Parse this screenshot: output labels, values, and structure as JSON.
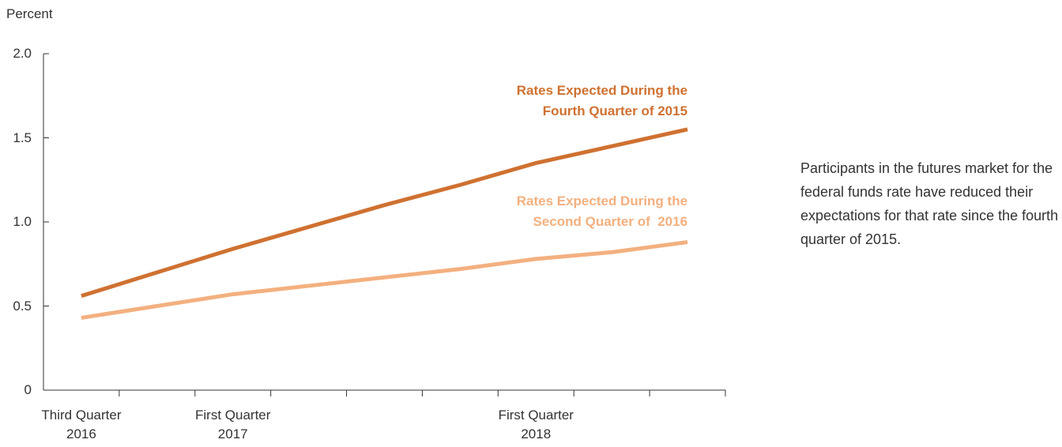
{
  "chart_data": {
    "type": "line",
    "y_axis_label": "Percent",
    "categories": [
      "Third Quarter 2016",
      null,
      "First Quarter 2017",
      null,
      null,
      null,
      "First Quarter 2018",
      null,
      null
    ],
    "series": [
      {
        "name": "Rates Expected During the Fourth Quarter of 2015",
        "color": "#cf7131",
        "values": [
          0.56,
          0.7,
          0.84,
          0.97,
          1.1,
          1.22,
          1.35,
          1.45,
          1.55
        ]
      },
      {
        "name": "Rates Expected During the Second Quarter of  2016",
        "color": "#f3b07f",
        "values": [
          0.43,
          0.5,
          0.57,
          0.62,
          0.67,
          0.72,
          0.78,
          0.82,
          0.88
        ]
      }
    ],
    "ylim": [
      0,
      2
    ],
    "yticks": [
      0,
      0.5,
      {
        "value": 1,
        "label": "1.0"
      },
      1.5,
      {
        "value": 2,
        "label": "2.0"
      }
    ],
    "annotation": "Participants in the futures market for the federal funds rate have reduced their expectations for that rate since the fourth quarter of 2015."
  }
}
